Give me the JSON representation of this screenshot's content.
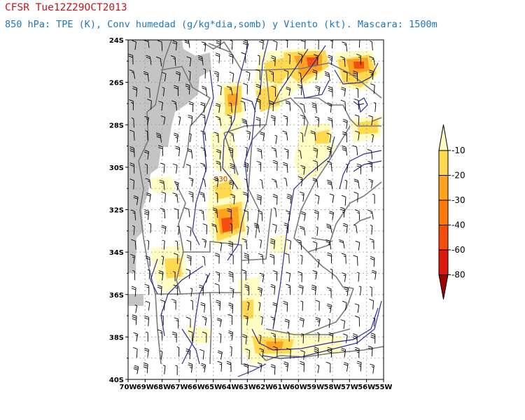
{
  "header": {
    "title": "CFSR Tue12Z29OCT2013",
    "subtitle": "850 hPa: TPE (K), Conv humedad (g/kg*dia,somb) y Viento (kt). Mascara: 1500m"
  },
  "map": {
    "lat_labels": [
      "24S",
      "26S",
      "28S",
      "30S",
      "32S",
      "34S",
      "36S",
      "38S",
      "40S"
    ],
    "lon_labels": [
      "70W",
      "69W",
      "68W",
      "67W",
      "66W",
      "65W",
      "64W",
      "63W",
      "62W",
      "61W",
      "60W",
      "59W",
      "58W",
      "57W",
      "56W",
      "55W"
    ],
    "lat_range": [
      -40,
      -24
    ],
    "lon_range": [
      -70,
      -55
    ],
    "contour_label": "330",
    "contour_color": "#2c2ca0",
    "mask_color": "#c4c4c4",
    "border_color": "#7a7a7a"
  },
  "colorbar": {
    "labels": [
      "-10",
      "-20",
      "-30",
      "-40",
      "-60",
      "-80"
    ],
    "colors": [
      "#fffcc4",
      "#ffd94f",
      "#ffa31f",
      "#ff7b09",
      "#f44d0c",
      "#dd1a0d",
      "#a00000"
    ]
  }
}
